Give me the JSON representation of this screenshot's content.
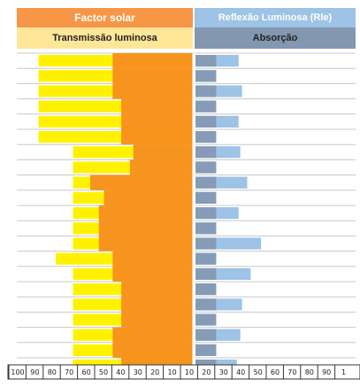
{
  "headers": {
    "left_top": "Factor solar",
    "left_sub": "Transmissão luminosa",
    "right_top": "Reflexão Luminosa (Rle)",
    "right_sub": "Absorção"
  },
  "colors": {
    "factor_solar": "#f7941d",
    "transmissao": "#fff200",
    "reflexao": "#9dc3e6",
    "absorcao": "#8497b0",
    "header_orange": "#f79646",
    "header_yellow": "#ffe699",
    "header_blue": "#9dc3e6",
    "header_grey": "#8497b0"
  },
  "chart_data": {
    "type": "bar",
    "orientation": "horizontal-diverging",
    "series": [
      {
        "name": "Factor solar",
        "side": "left",
        "values": [
          47,
          47,
          47,
          42,
          42,
          42,
          35,
          37,
          60,
          52,
          55,
          55,
          55,
          47,
          47,
          42,
          42,
          42,
          47,
          47,
          42
        ]
      },
      {
        "name": "Transmissão luminosa",
        "side": "left",
        "values": [
          90,
          90,
          90,
          90,
          90,
          90,
          70,
          70,
          70,
          70,
          70,
          70,
          70,
          80,
          70,
          70,
          70,
          70,
          70,
          70,
          70
        ]
      },
      {
        "name": "Reflexão Luminosa (Rle)",
        "side": "right",
        "values": [
          25,
          12,
          27,
          12,
          25,
          12,
          26,
          12,
          30,
          12,
          25,
          12,
          38,
          12,
          32,
          12,
          27,
          12,
          26,
          12,
          24
        ]
      },
      {
        "name": "Absorção",
        "side": "right",
        "values": [
          12,
          12,
          12,
          12,
          12,
          12,
          12,
          12,
          12,
          12,
          12,
          12,
          12,
          12,
          12,
          12,
          12,
          12,
          12,
          12,
          12
        ]
      }
    ],
    "xlim": [
      0,
      100
    ],
    "ticks": [
      "100",
      "90",
      "80",
      "70",
      "60",
      "50",
      "40",
      "30",
      "20",
      "10",
      "10",
      "20",
      "30",
      "40",
      "50",
      "60",
      "70",
      "80",
      "90",
      "1"
    ]
  }
}
